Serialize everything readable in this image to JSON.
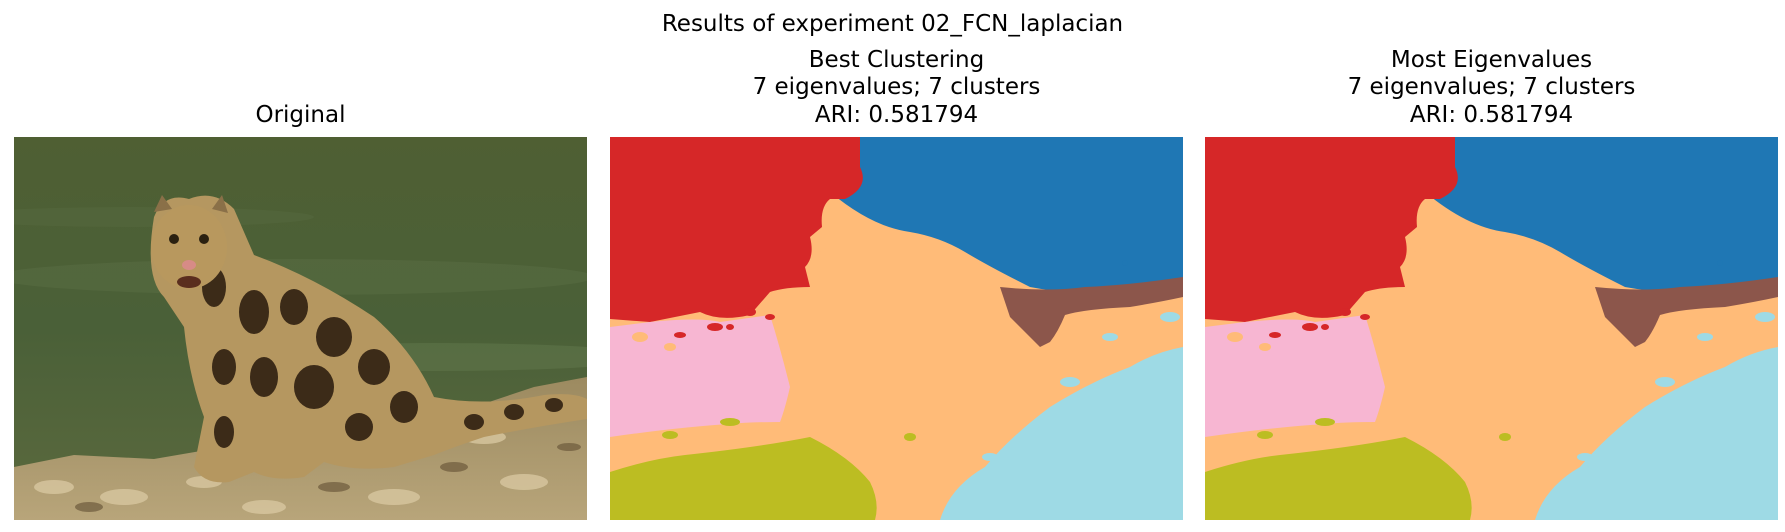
{
  "figure": {
    "suptitle": "Results of experiment 02_FCN_laplacian"
  },
  "panels": [
    {
      "title_lines": [
        "Original"
      ],
      "image": "photo of a clouded leopard sitting on a rocky riverbank with green water behind"
    },
    {
      "title_lines": [
        "Best Clustering",
        "7 eigenvalues; 7 clusters",
        "ARI: 0.581794"
      ],
      "image": "segmentation map"
    },
    {
      "title_lines": [
        "Most Eigenvalues",
        "7 eigenvalues; 7 clusters",
        "ARI: 0.581794"
      ],
      "image": "segmentation map"
    }
  ],
  "cluster_colors": {
    "red": "#d62728",
    "blue": "#1f77b4",
    "orange": "#ffbb78",
    "brown": "#8c564b",
    "pink": "#f7b6d2",
    "olive": "#bcbd22",
    "cyan": "#9edae5"
  }
}
